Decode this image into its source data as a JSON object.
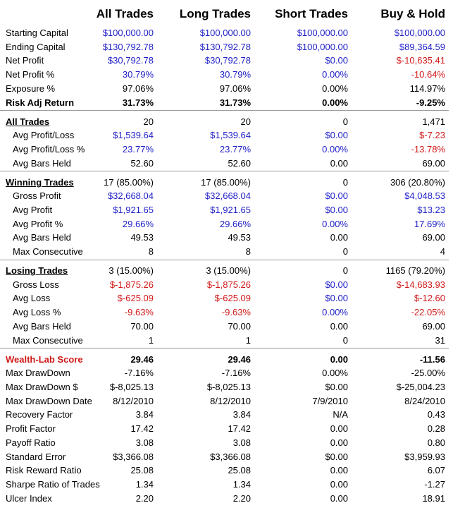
{
  "headers": [
    "All Trades",
    "Long Trades",
    "Short Trades",
    "Buy & Hold"
  ],
  "rows": [
    {
      "label": "Starting Capital",
      "values": [
        "$100,000.00",
        "$100,000.00",
        "$100,000.00",
        "$100,000.00"
      ],
      "colors": [
        "blue",
        "blue",
        "blue",
        "blue"
      ]
    },
    {
      "label": "Ending Capital",
      "values": [
        "$130,792.78",
        "$130,792.78",
        "$100,000.00",
        "$89,364.59"
      ],
      "colors": [
        "blue",
        "blue",
        "blue",
        "blue"
      ]
    },
    {
      "label": "Net Profit",
      "values": [
        "$30,792.78",
        "$30,792.78",
        "$0.00",
        "$-10,635.41"
      ],
      "colors": [
        "blue",
        "blue",
        "blue",
        "red"
      ]
    },
    {
      "label": "Net Profit %",
      "values": [
        "30.79%",
        "30.79%",
        "0.00%",
        "-10.64%"
      ],
      "colors": [
        "blue",
        "blue",
        "blue",
        "red"
      ]
    },
    {
      "label": "Exposure %",
      "values": [
        "97.06%",
        "97.06%",
        "0.00%",
        "114.97%"
      ],
      "colors": [
        "black",
        "black",
        "black",
        "black"
      ]
    },
    {
      "label": "Risk Adj Return",
      "values": [
        "31.73%",
        "31.73%",
        "0.00%",
        "-9.25%"
      ],
      "colors": [
        "black",
        "black",
        "black",
        "black"
      ],
      "bold": true
    },
    {
      "separator": true
    },
    {
      "label": "All Trades",
      "values": [
        "20",
        "20",
        "0",
        "1,471"
      ],
      "colors": [
        "black",
        "black",
        "black",
        "black"
      ],
      "section": true
    },
    {
      "label": "Avg Profit/Loss",
      "values": [
        "$1,539.64",
        "$1,539.64",
        "$0.00",
        "$-7.23"
      ],
      "colors": [
        "blue",
        "blue",
        "blue",
        "red"
      ],
      "indent": true
    },
    {
      "label": "Avg Profit/Loss %",
      "values": [
        "23.77%",
        "23.77%",
        "0.00%",
        "-13.78%"
      ],
      "colors": [
        "blue",
        "blue",
        "blue",
        "red"
      ],
      "indent": true
    },
    {
      "label": "Avg Bars Held",
      "values": [
        "52.60",
        "52.60",
        "0.00",
        "69.00"
      ],
      "colors": [
        "black",
        "black",
        "black",
        "black"
      ],
      "indent": true
    },
    {
      "separator": true
    },
    {
      "label": "Winning Trades",
      "values": [
        "17 (85.00%)",
        "17 (85.00%)",
        "0",
        "306 (20.80%)"
      ],
      "colors": [
        "black",
        "black",
        "black",
        "black"
      ],
      "section": true
    },
    {
      "label": "Gross Profit",
      "values": [
        "$32,668.04",
        "$32,668.04",
        "$0.00",
        "$4,048.53"
      ],
      "colors": [
        "blue",
        "blue",
        "blue",
        "blue"
      ],
      "indent": true
    },
    {
      "label": "Avg Profit",
      "values": [
        "$1,921.65",
        "$1,921.65",
        "$0.00",
        "$13.23"
      ],
      "colors": [
        "blue",
        "blue",
        "blue",
        "blue"
      ],
      "indent": true
    },
    {
      "label": "Avg Profit %",
      "values": [
        "29.66%",
        "29.66%",
        "0.00%",
        "17.69%"
      ],
      "colors": [
        "blue",
        "blue",
        "blue",
        "blue"
      ],
      "indent": true
    },
    {
      "label": "Avg Bars Held",
      "values": [
        "49.53",
        "49.53",
        "0.00",
        "69.00"
      ],
      "colors": [
        "black",
        "black",
        "black",
        "black"
      ],
      "indent": true
    },
    {
      "label": "Max Consecutive",
      "values": [
        "8",
        "8",
        "0",
        "4"
      ],
      "colors": [
        "black",
        "black",
        "black",
        "black"
      ],
      "indent": true
    },
    {
      "separator": true
    },
    {
      "label": "Losing Trades",
      "values": [
        "3 (15.00%)",
        "3 (15.00%)",
        "0",
        "1165 (79.20%)"
      ],
      "colors": [
        "black",
        "black",
        "black",
        "black"
      ],
      "section": true
    },
    {
      "label": "Gross Loss",
      "values": [
        "$-1,875.26",
        "$-1,875.26",
        "$0.00",
        "$-14,683.93"
      ],
      "colors": [
        "red",
        "red",
        "blue",
        "red"
      ],
      "indent": true
    },
    {
      "label": "Avg Loss",
      "values": [
        "$-625.09",
        "$-625.09",
        "$0.00",
        "$-12.60"
      ],
      "colors": [
        "red",
        "red",
        "blue",
        "red"
      ],
      "indent": true
    },
    {
      "label": "Avg Loss %",
      "values": [
        "-9.63%",
        "-9.63%",
        "0.00%",
        "-22.05%"
      ],
      "colors": [
        "red",
        "red",
        "blue",
        "red"
      ],
      "indent": true
    },
    {
      "label": "Avg Bars Held",
      "values": [
        "70.00",
        "70.00",
        "0.00",
        "69.00"
      ],
      "colors": [
        "black",
        "black",
        "black",
        "black"
      ],
      "indent": true
    },
    {
      "label": "Max Consecutive",
      "values": [
        "1",
        "1",
        "0",
        "31"
      ],
      "colors": [
        "black",
        "black",
        "black",
        "black"
      ],
      "indent": true
    },
    {
      "separator": true
    },
    {
      "label": "Wealth-Lab Score",
      "values": [
        "29.46",
        "29.46",
        "0.00",
        "-11.56"
      ],
      "colors": [
        "black",
        "black",
        "black",
        "black"
      ],
      "bold": true,
      "wl": true
    },
    {
      "label": "Max DrawDown",
      "values": [
        "-7.16%",
        "-7.16%",
        "0.00%",
        "-25.00%"
      ],
      "colors": [
        "black",
        "black",
        "black",
        "black"
      ]
    },
    {
      "label": "Max DrawDown $",
      "values": [
        "$-8,025.13",
        "$-8,025.13",
        "$0.00",
        "$-25,004.23"
      ],
      "colors": [
        "black",
        "black",
        "black",
        "black"
      ]
    },
    {
      "label": "Max DrawDown Date",
      "values": [
        "8/12/2010",
        "8/12/2010",
        "7/9/2010",
        "8/24/2010"
      ],
      "colors": [
        "black",
        "black",
        "black",
        "black"
      ]
    },
    {
      "label": "Recovery Factor",
      "values": [
        "3.84",
        "3.84",
        "N/A",
        "0.43"
      ],
      "colors": [
        "black",
        "black",
        "black",
        "black"
      ]
    },
    {
      "label": "Profit Factor",
      "values": [
        "17.42",
        "17.42",
        "0.00",
        "0.28"
      ],
      "colors": [
        "black",
        "black",
        "black",
        "black"
      ]
    },
    {
      "label": "Payoff Ratio",
      "values": [
        "3.08",
        "3.08",
        "0.00",
        "0.80"
      ],
      "colors": [
        "black",
        "black",
        "black",
        "black"
      ]
    },
    {
      "label": "Standard Error",
      "values": [
        "$3,366.08",
        "$3,366.08",
        "$0.00",
        "$3,959.93"
      ],
      "colors": [
        "black",
        "black",
        "black",
        "black"
      ]
    },
    {
      "label": "Risk Reward Ratio",
      "values": [
        "25.08",
        "25.08",
        "0.00",
        "6.07"
      ],
      "colors": [
        "black",
        "black",
        "black",
        "black"
      ]
    },
    {
      "label": "Sharpe Ratio of Trades",
      "values": [
        "1.34",
        "1.34",
        "0.00",
        "-1.27"
      ],
      "colors": [
        "black",
        "black",
        "black",
        "black"
      ]
    },
    {
      "label": "Ulcer Index",
      "values": [
        "2.20",
        "2.20",
        "0.00",
        "18.91"
      ],
      "colors": [
        "black",
        "black",
        "black",
        "black"
      ]
    }
  ]
}
